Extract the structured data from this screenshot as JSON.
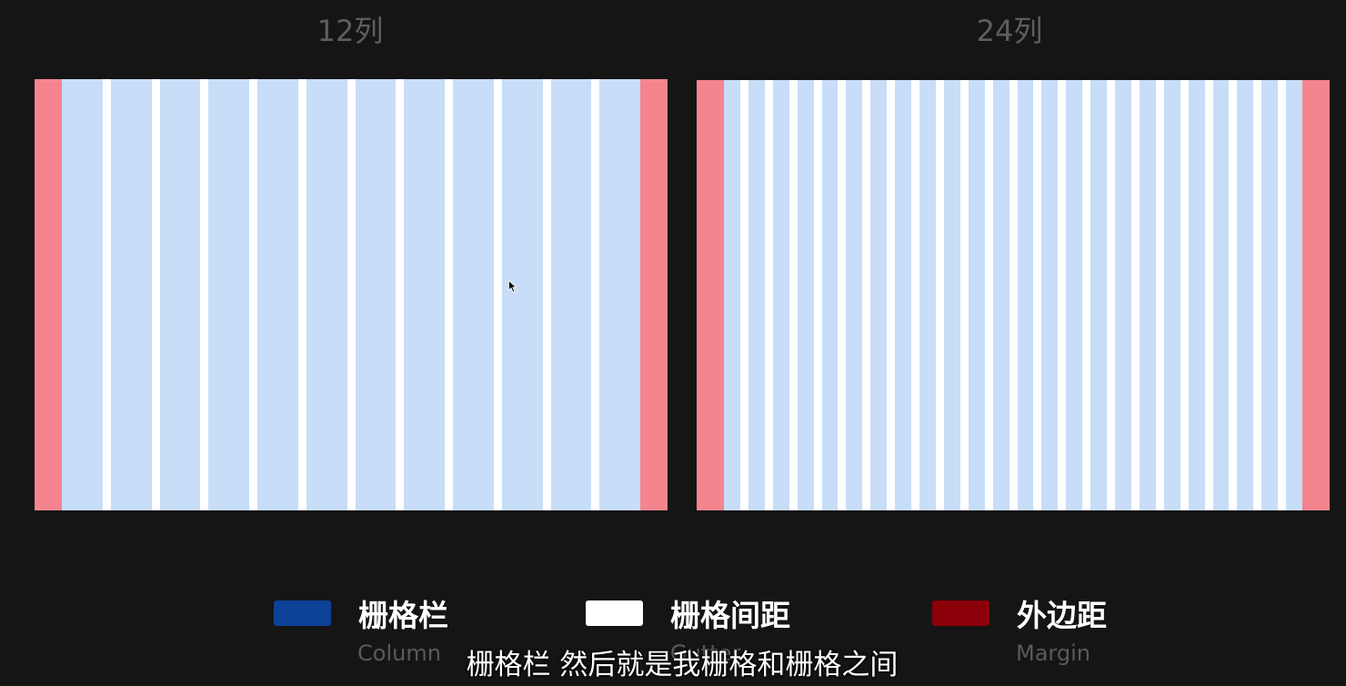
{
  "titles": {
    "grid_12": "12列",
    "grid_24": "24列"
  },
  "grid_12": {
    "columns": 12
  },
  "grid_24": {
    "columns": 24
  },
  "colors": {
    "background": "#151515",
    "column": "#c8ddf7",
    "gutter": "#ffffff",
    "margin": "#f4858f",
    "legend_column": "#0d4196",
    "legend_gutter": "#ffffff",
    "legend_margin": "#8b0009"
  },
  "legend": [
    {
      "label": "栅格栏",
      "sub": "Column"
    },
    {
      "label": "栅格间距",
      "sub": "Gutter"
    },
    {
      "label": "外边距",
      "sub": "Margin"
    }
  ],
  "subtitle": "栅格栏 然后就是我栅格和栅格之间",
  "icons": {
    "cursor": "mouse-pointer-icon"
  }
}
